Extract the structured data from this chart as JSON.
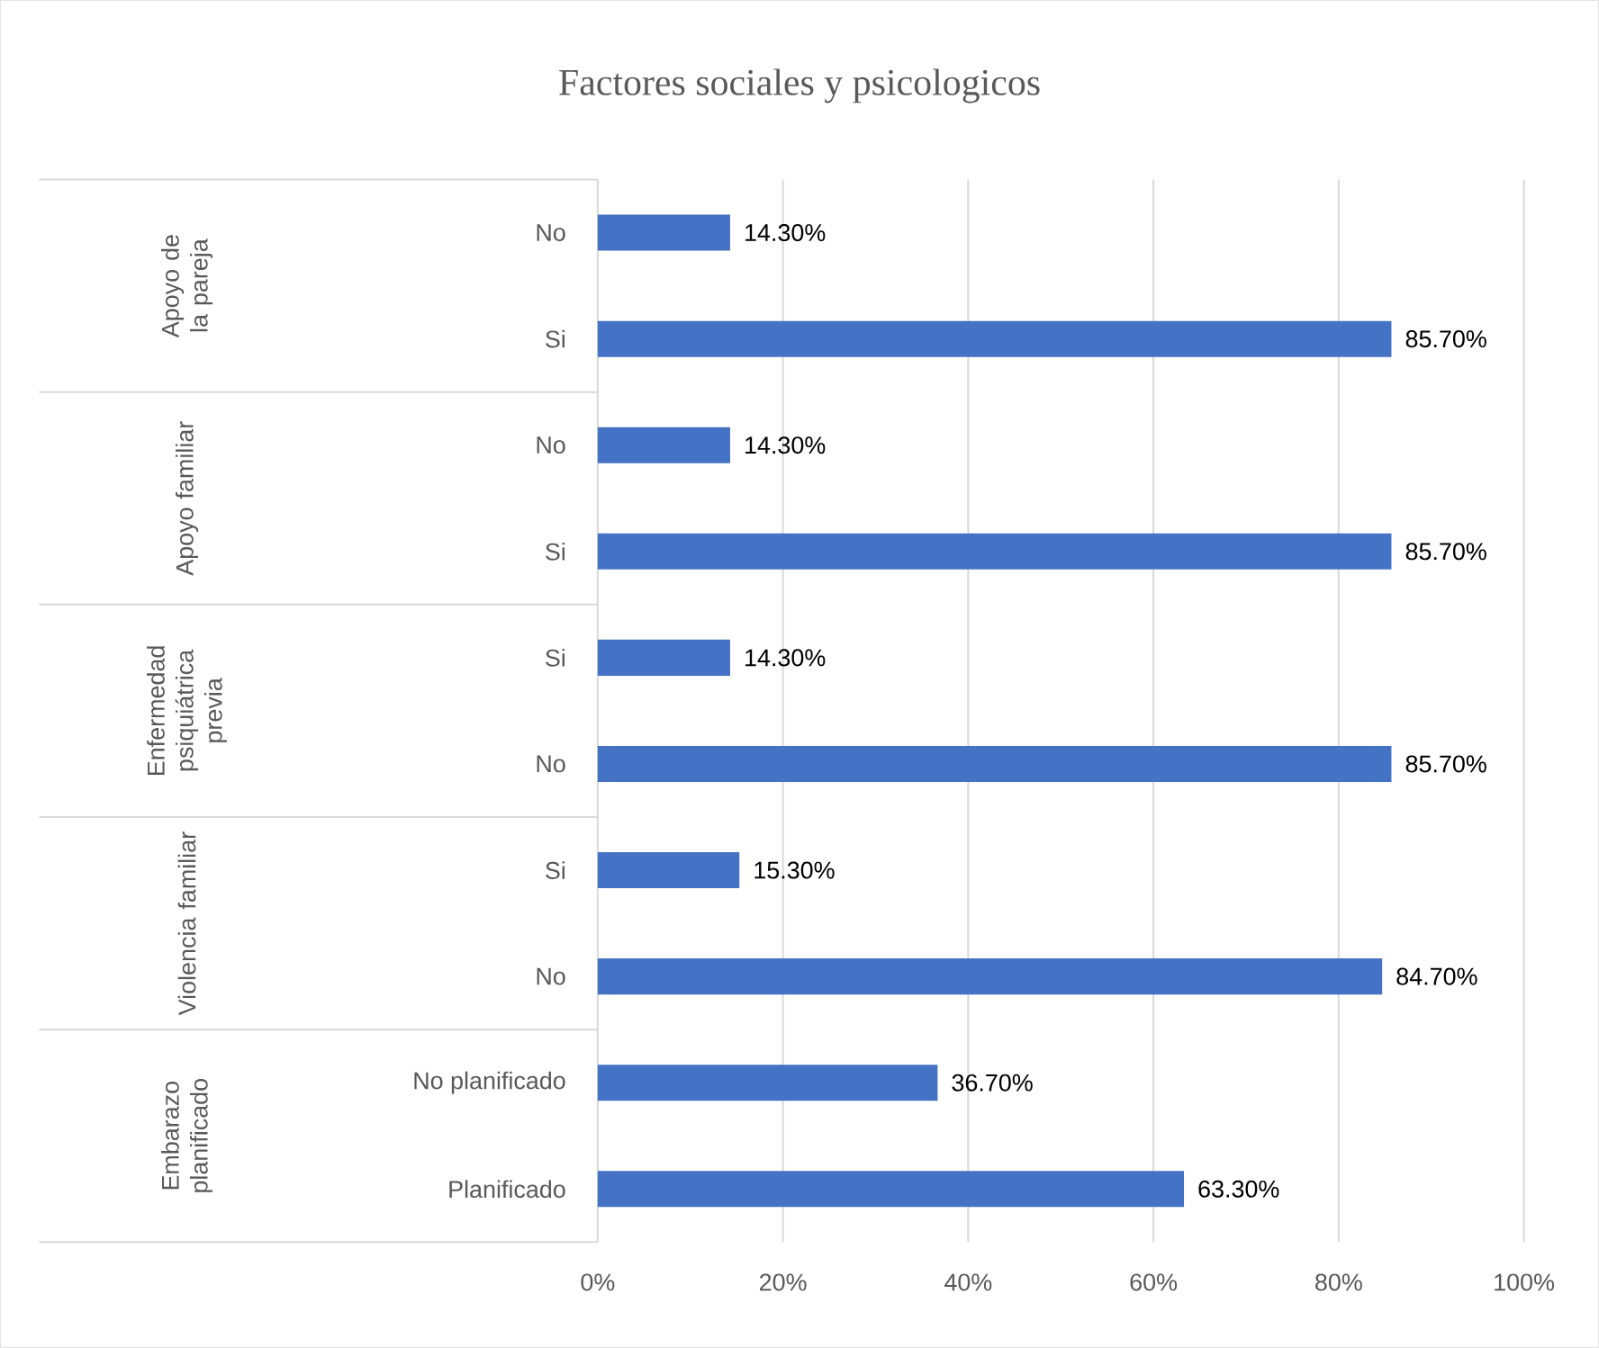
{
  "chart_data": {
    "type": "bar",
    "orientation": "horizontal",
    "title": "Factores sociales y psicologicos",
    "categories": [
      "No",
      "Si",
      "No",
      "Si",
      "Si",
      "No",
      "Si",
      "No",
      "No planificado",
      "Planificado"
    ],
    "values": [
      14.3,
      85.7,
      14.3,
      85.7,
      14.3,
      85.7,
      15.3,
      84.7,
      36.7,
      63.3
    ],
    "value_labels": [
      "14.30%",
      "85.70%",
      "14.30%",
      "85.70%",
      "14.30%",
      "85.70%",
      "15.30%",
      "84.70%",
      "36.70%",
      "63.30%"
    ],
    "annotations": [
      "Apoyo de la pareja",
      "Apoyo familiar",
      "Enfermedad psiquiátrica previa",
      "Violencia familiar",
      "Embarazo planificado"
    ],
    "color": "#4472c4",
    "xlim": [
      0,
      100
    ],
    "xticks": [
      {
        "value": 0,
        "label": "0%"
      },
      {
        "value": 20,
        "label": "20%"
      },
      {
        "value": 40,
        "label": "40%"
      },
      {
        "value": 60,
        "label": "60%"
      },
      {
        "value": 80,
        "label": "80%"
      },
      {
        "value": 100,
        "label": "100%"
      }
    ],
    "grid": "x"
  }
}
